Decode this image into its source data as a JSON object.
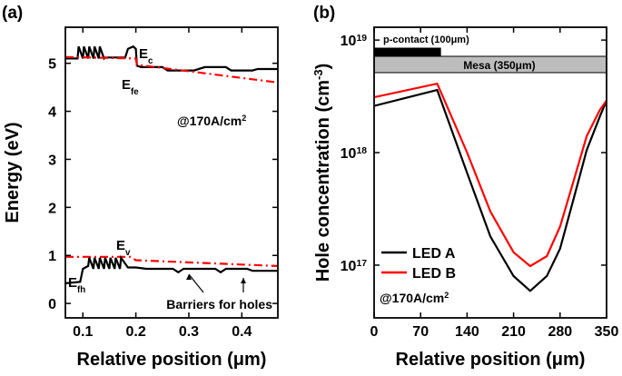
{
  "chart_data": [
    {
      "type": "line",
      "panel_label": "(a)",
      "x_label": {
        "text": "Relative position (",
        "mu": "μm",
        "after": ")"
      },
      "y_label": {
        "text": "Energy (eV)"
      },
      "xlim": [
        0.067,
        0.468
      ],
      "ylim": [
        -0.3,
        5.75
      ],
      "xticks": [
        0.1,
        0.2,
        0.3,
        0.4
      ],
      "yticks": [
        0,
        1,
        2,
        3,
        4,
        5
      ],
      "series": [
        {
          "label": {
            "text": "E",
            "sub": "c"
          },
          "color": "#000000",
          "dash": "solid",
          "x": [
            0.067,
            0.09,
            0.092,
            0.1,
            0.102,
            0.11,
            0.112,
            0.12,
            0.122,
            0.13,
            0.132,
            0.14,
            0.142,
            0.18,
            0.185,
            0.195,
            0.2,
            0.202,
            0.21,
            0.25,
            0.26,
            0.31,
            0.33,
            0.37,
            0.38,
            0.42,
            0.43,
            0.468
          ],
          "values": [
            5.1,
            5.1,
            5.35,
            5.1,
            5.35,
            5.1,
            5.35,
            5.1,
            5.35,
            5.1,
            5.35,
            5.1,
            5.12,
            5.12,
            5.3,
            5.35,
            5.3,
            4.95,
            4.92,
            4.92,
            4.85,
            4.85,
            4.92,
            4.92,
            4.85,
            4.85,
            4.88,
            4.88
          ]
        },
        {
          "label": {
            "text": "E",
            "sub": "fe"
          },
          "color": "#ff0000",
          "dash": "dashdot",
          "x": [
            0.067,
            0.2,
            0.202,
            0.468
          ],
          "values": [
            5.13,
            5.1,
            4.97,
            4.6
          ]
        },
        {
          "label": {
            "text": "E",
            "sub": "v"
          },
          "color": "#ff0000",
          "dash": "dashdot",
          "x": [
            0.067,
            0.19,
            0.2,
            0.468
          ],
          "values": [
            0.97,
            0.97,
            0.9,
            0.78
          ]
        },
        {
          "label": {
            "text": "E",
            "sub": "fh"
          },
          "color": "#000000",
          "dash": "solid",
          "x": [
            0.067,
            0.095,
            0.1,
            0.11,
            0.112,
            0.12,
            0.122,
            0.13,
            0.132,
            0.14,
            0.142,
            0.15,
            0.152,
            0.16,
            0.162,
            0.17,
            0.172,
            0.185,
            0.2,
            0.22,
            0.27,
            0.28,
            0.29,
            0.35,
            0.36,
            0.37,
            0.41,
            0.42,
            0.468
          ],
          "values": [
            0.42,
            0.45,
            0.72,
            0.78,
            0.95,
            0.72,
            0.95,
            0.72,
            0.95,
            0.72,
            0.95,
            0.72,
            0.95,
            0.72,
            0.95,
            0.72,
            0.95,
            0.75,
            0.75,
            0.72,
            0.72,
            0.65,
            0.72,
            0.72,
            0.65,
            0.72,
            0.72,
            0.68,
            0.68
          ]
        }
      ],
      "annotations": [
        {
          "text": "@170A/cm",
          "sup": "2"
        },
        {
          "text": "Barriers for holes"
        }
      ]
    },
    {
      "type": "line",
      "panel_label": "(b)",
      "log_y": true,
      "x_label": {
        "text": "Relative position (",
        "mu": "μm",
        "after": ")"
      },
      "y_label": {
        "text": "Hole concentration (cm",
        "sup": "-3",
        "after": ")"
      },
      "xlim": [
        0,
        350
      ],
      "ylim": [
        3.4e+16,
        1.3e+19
      ],
      "xticks": [
        0,
        70,
        140,
        210,
        280,
        350
      ],
      "yticks": [
        {
          "value": 1e+17,
          "label": "10",
          "sup": "17"
        },
        {
          "value": 1e+18,
          "label": "10",
          "sup": "18"
        },
        {
          "value": 1e+19,
          "label": "10",
          "sup": "19"
        }
      ],
      "series": [
        {
          "name": "LED A",
          "color": "#000000",
          "dash": "solid",
          "x": [
            0,
            95,
            140,
            175,
            210,
            235,
            260,
            280,
            300,
            320,
            340,
            350
          ],
          "values": [
            2.6e+18,
            3.6e+18,
            6.6e+17,
            1.8e+17,
            8e+16,
            5.9e+16,
            8e+16,
            1.4e+17,
            3.8e+17,
            1.05e+18,
            2.1e+18,
            2.9e+18
          ]
        },
        {
          "name": "LED B",
          "color": "#ff0000",
          "dash": "solid",
          "x": [
            0,
            95,
            140,
            175,
            210,
            235,
            260,
            280,
            300,
            320,
            340,
            350
          ],
          "values": [
            3.1e+18,
            4.1e+18,
            1e+18,
            3e+17,
            1.3e+17,
            9.8e+16,
            1.2e+17,
            2.2e+17,
            5.5e+17,
            1.4e+18,
            2.4e+18,
            2.9e+18
          ]
        }
      ],
      "legend": "lower left",
      "regions": [
        {
          "text": "p-contact (100μm)",
          "xrange": [
            0,
            100
          ],
          "color": "#000000"
        },
        {
          "text": "Mesa (350μm)",
          "xrange": [
            0,
            350
          ],
          "color": "#bdbdbd"
        }
      ],
      "annotations": [
        {
          "text": "@170A/cm",
          "sup": "2"
        }
      ]
    }
  ]
}
